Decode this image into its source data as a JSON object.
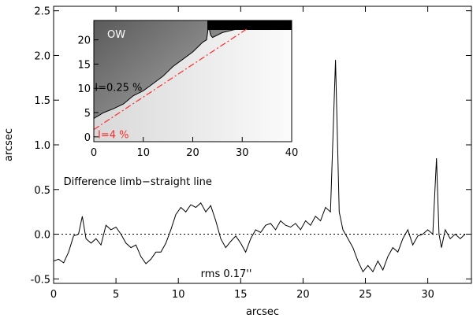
{
  "chart_data": [
    {
      "type": "line",
      "title": "",
      "xlabel": "arcsec",
      "ylabel": "arcsec",
      "xlim": [
        0,
        33.5
      ],
      "ylim": [
        -0.55,
        2.55
      ],
      "x_ticks": [
        "0",
        "5",
        "10",
        "15",
        "20",
        "25",
        "30"
      ],
      "x_tick_values": [
        0,
        5,
        10,
        15,
        20,
        25,
        30
      ],
      "y_ticks": [
        "-0.5",
        "0.0",
        "0.5",
        "1.0",
        "1.5",
        "2.0",
        "2.5"
      ],
      "y_tick_values": [
        -0.5,
        0.0,
        0.5,
        1.0,
        1.5,
        2.0,
        2.5
      ],
      "reference_line": {
        "y": 0.0,
        "style": "dotted"
      },
      "annotations": [
        {
          "text": "Difference limb−straight line",
          "x": 0.8,
          "y": 0.55
        },
        {
          "text": "rms 0.17''",
          "x": 11.8,
          "y": -0.48
        }
      ],
      "series": [
        {
          "x": [
            0,
            0.4,
            0.8,
            1.2,
            1.6,
            2.0,
            2.3,
            2.6,
            3.0,
            3.4,
            3.8,
            4.2,
            4.6,
            5.0,
            5.4,
            5.8,
            6.2,
            6.6,
            7.0,
            7.4,
            7.8,
            8.2,
            8.6,
            9.0,
            9.4,
            9.8,
            10.2,
            10.6,
            11.0,
            11.4,
            11.8,
            12.2,
            12.6,
            13.0,
            13.4,
            13.8,
            14.2,
            14.6,
            15.0,
            15.4,
            15.8,
            16.2,
            16.6,
            17.0,
            17.4,
            17.8,
            18.2,
            18.6,
            19.0,
            19.4,
            19.8,
            20.2,
            20.6,
            21.0,
            21.4,
            21.8,
            22.2,
            22.6,
            22.9,
            23.2,
            23.6,
            24.0,
            24.4,
            24.8,
            25.2,
            25.6,
            26.0,
            26.4,
            26.8,
            27.2,
            27.6,
            28.0,
            28.4,
            28.8,
            29.2,
            29.6,
            30.0,
            30.4,
            30.7,
            30.9,
            31.1,
            31.4,
            31.8,
            32.2,
            32.6,
            33.0
          ],
          "values": [
            -0.3,
            -0.28,
            -0.32,
            -0.2,
            -0.02,
            0.0,
            0.2,
            -0.05,
            -0.1,
            -0.05,
            -0.12,
            0.1,
            0.05,
            0.08,
            0.0,
            -0.1,
            -0.15,
            -0.12,
            -0.25,
            -0.33,
            -0.28,
            -0.2,
            -0.2,
            -0.1,
            0.05,
            0.22,
            0.3,
            0.25,
            0.33,
            0.3,
            0.35,
            0.25,
            0.32,
            0.15,
            -0.05,
            -0.15,
            -0.08,
            -0.02,
            -0.1,
            -0.2,
            -0.05,
            0.05,
            0.02,
            0.1,
            0.12,
            0.05,
            0.15,
            0.1,
            0.08,
            0.12,
            0.05,
            0.15,
            0.1,
            0.2,
            0.15,
            0.3,
            0.25,
            1.95,
            0.25,
            0.05,
            -0.05,
            -0.15,
            -0.3,
            -0.42,
            -0.35,
            -0.42,
            -0.3,
            -0.4,
            -0.25,
            -0.15,
            -0.2,
            -0.05,
            0.05,
            -0.12,
            -0.02,
            0.0,
            0.05,
            0.0,
            0.85,
            0.0,
            -0.15,
            0.05,
            -0.05,
            0.0,
            -0.05,
            0.0
          ]
        }
      ]
    },
    {
      "type": "line",
      "title": "",
      "label": "OW",
      "xlim": [
        0,
        40
      ],
      "ylim": [
        -1,
        24
      ],
      "x_ticks": [
        "0",
        "10",
        "20",
        "30",
        "40"
      ],
      "x_tick_values": [
        0,
        10,
        20,
        30,
        40
      ],
      "y_ticks": [
        "0",
        "5",
        "10",
        "15",
        "20"
      ],
      "y_tick_values": [
        0,
        5,
        10,
        15,
        20
      ],
      "colors": {
        "level_low": "#ff2a2a",
        "level_high": "#000000"
      },
      "annotations": [
        {
          "text": "I=0.25  %",
          "color": "#000000",
          "x": 0.2,
          "y": 9.5
        },
        {
          "text": "I=4  %",
          "color": "#ff2a2a",
          "x": 0.8,
          "y": -0.3
        }
      ],
      "series": [
        {
          "name": "I=0.25  %",
          "x": [
            0,
            2,
            4,
            6,
            8,
            10,
            12,
            14,
            16,
            18,
            20,
            22,
            22.8,
            23.2,
            23.6,
            24,
            26,
            28,
            30
          ],
          "values": [
            3.8,
            5.0,
            5.8,
            6.8,
            8.5,
            9.5,
            11.0,
            12.5,
            14.5,
            16.0,
            17.5,
            19.5,
            20.0,
            23.0,
            21.0,
            20.5,
            21.5,
            22.0,
            22.5
          ]
        },
        {
          "name": "I=4  %",
          "x": [
            0,
            31
          ],
          "values": [
            1.5,
            22.3
          ]
        }
      ]
    }
  ]
}
